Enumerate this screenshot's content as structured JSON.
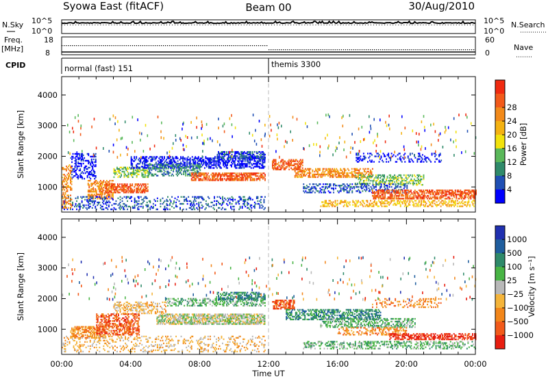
{
  "header": {
    "station": "Syowa East (fitACF)",
    "beam": "Beam 00",
    "date": "30/Aug/2010"
  },
  "chart_data": [
    {
      "id": "nsky-nsearch",
      "type": "line",
      "left_label": "N.Sky",
      "right_label": "N.Search",
      "left_ticks": [
        "10^5",
        "10^0"
      ],
      "right_ticks": [
        "10^5",
        "10^0"
      ],
      "log_scale": true
    },
    {
      "id": "freq-nave",
      "type": "line",
      "left_label": "Freq.",
      "left_unit": "[MHz]",
      "right_label": "Nave",
      "left_ticks": [
        "18",
        "8"
      ],
      "right_ticks": [
        "60",
        "0"
      ]
    },
    {
      "id": "cpid",
      "type": "table",
      "label": "CPID",
      "segments": [
        {
          "name": "normal (fast) 151",
          "start_hour": 0,
          "end_hour": 12
        },
        {
          "name": "themis 3300",
          "start_hour": 12,
          "end_hour": 24
        }
      ]
    },
    {
      "id": "power",
      "type": "heatmap",
      "ylabel": "Slant Range [km]",
      "yticks": [
        1000,
        2000,
        3000,
        4000
      ],
      "ylim": [
        180,
        4600
      ],
      "xlim": [
        0,
        24
      ],
      "colorbar": {
        "label": "Power [dB]",
        "ticks": [
          "4",
          "8",
          "12",
          "16",
          "20",
          "24",
          "28"
        ],
        "colors": [
          "#0000ff",
          "#1f4fb4",
          "#2f8a6a",
          "#5ab85a",
          "#f2e20c",
          "#f4b212",
          "#f28a1a",
          "#f25a1a",
          "#f02a10"
        ]
      },
      "bands": [
        {
          "t0": 0.5,
          "t1": 2.0,
          "r0": 1250,
          "r1": 2100,
          "c": 0,
          "p": 0.35
        },
        {
          "t0": 1.5,
          "t1": 3.0,
          "r0": 600,
          "r1": 1200,
          "c": 6,
          "p": 0.55
        },
        {
          "t0": 2.5,
          "t1": 5.0,
          "r0": 800,
          "r1": 1100,
          "c": 7,
          "p": 0.6
        },
        {
          "t0": 3.0,
          "t1": 5.0,
          "r0": 1300,
          "r1": 1650,
          "c": 3,
          "p": 0.5
        },
        {
          "t0": 4.0,
          "t1": 11.8,
          "r0": 1600,
          "r1": 2000,
          "c": 0,
          "p": 0.5
        },
        {
          "t0": 5.0,
          "t1": 8.0,
          "r0": 1350,
          "r1": 1750,
          "c": 2,
          "p": 0.45
        },
        {
          "t0": 7.5,
          "t1": 11.8,
          "r0": 1200,
          "r1": 1450,
          "c": 7,
          "p": 0.65
        },
        {
          "t0": 9.0,
          "t1": 11.8,
          "r0": 1900,
          "r1": 2150,
          "c": 1,
          "p": 0.55
        },
        {
          "t0": 0.0,
          "t1": 11.8,
          "r0": 250,
          "r1": 700,
          "c": 1,
          "p": 0.25
        },
        {
          "t0": 0.0,
          "t1": 0.6,
          "r0": 300,
          "r1": 1700,
          "c": 6,
          "p": 0.4
        },
        {
          "t0": 12.2,
          "t1": 14.0,
          "r0": 1550,
          "r1": 1900,
          "c": 7,
          "p": 0.6
        },
        {
          "t0": 13.5,
          "t1": 18.0,
          "r0": 1300,
          "r1": 1600,
          "c": 6,
          "p": 0.5
        },
        {
          "t0": 17.0,
          "t1": 21.0,
          "r0": 1050,
          "r1": 1400,
          "c": 3,
          "p": 0.4
        },
        {
          "t0": 14.0,
          "t1": 20.0,
          "r0": 800,
          "r1": 1100,
          "c": 1,
          "p": 0.35
        },
        {
          "t0": 18.0,
          "t1": 24.0,
          "r0": 600,
          "r1": 900,
          "c": 7,
          "p": 0.6
        },
        {
          "t0": 15.0,
          "t1": 24.0,
          "r0": 350,
          "r1": 550,
          "c": 5,
          "p": 0.4
        },
        {
          "t0": 17.0,
          "t1": 22.0,
          "r0": 1800,
          "r1": 2100,
          "c": 0,
          "p": 0.25
        }
      ]
    },
    {
      "id": "velocity",
      "type": "heatmap",
      "ylabel": "Slant Range [km]",
      "yticks": [
        1000,
        2000,
        3000,
        4000
      ],
      "ylim": [
        180,
        4600
      ],
      "xlim": [
        0,
        24
      ],
      "xticks": [
        "00:00",
        "04:00",
        "08:00",
        "12:00",
        "16:00",
        "20:00",
        "00:00"
      ],
      "xlabel": "Time UT",
      "colorbar": {
        "label": "Velocity [m s⁻¹]",
        "ticks": [
          "1000",
          "500",
          "100",
          "25",
          "−25",
          "−100",
          "−500",
          "−1000"
        ],
        "colors": [
          "#2030b0",
          "#1f5e9e",
          "#2f8a6a",
          "#48b444",
          "#b8b8b8",
          "#f4b43a",
          "#f2861a",
          "#f25a1a",
          "#e81e10"
        ]
      },
      "bands": [
        {
          "t0": 0.5,
          "t1": 2.5,
          "r0": 700,
          "r1": 1100,
          "c": 6,
          "p": 0.55
        },
        {
          "t0": 2.0,
          "t1": 4.5,
          "r0": 800,
          "r1": 1500,
          "c": 7,
          "p": 0.5
        },
        {
          "t0": 3.0,
          "t1": 6.0,
          "r0": 1500,
          "r1": 1900,
          "c": 5,
          "p": 0.4
        },
        {
          "t0": 5.5,
          "t1": 11.8,
          "r0": 1150,
          "r1": 1500,
          "c": 4,
          "p": 0.7
        },
        {
          "t0": 6.0,
          "t1": 11.8,
          "r0": 1750,
          "r1": 2000,
          "c": 3,
          "p": 0.45
        },
        {
          "t0": 9.0,
          "t1": 11.8,
          "r0": 1950,
          "r1": 2200,
          "c": 2,
          "p": 0.5
        },
        {
          "t0": 0.0,
          "t1": 11.8,
          "r0": 250,
          "r1": 750,
          "c": 5,
          "p": 0.2
        },
        {
          "t0": 12.2,
          "t1": 13.5,
          "r0": 1650,
          "r1": 1950,
          "c": 7,
          "p": 0.6
        },
        {
          "t0": 13.0,
          "t1": 18.5,
          "r0": 1300,
          "r1": 1650,
          "c": 2,
          "p": 0.5
        },
        {
          "t0": 15.0,
          "t1": 20.5,
          "r0": 1050,
          "r1": 1350,
          "c": 3,
          "p": 0.45
        },
        {
          "t0": 16.0,
          "t1": 20.0,
          "r0": 800,
          "r1": 1050,
          "c": 6,
          "p": 0.35
        },
        {
          "t0": 19.0,
          "t1": 24.0,
          "r0": 650,
          "r1": 850,
          "c": 8,
          "p": 0.55
        },
        {
          "t0": 14.0,
          "t1": 24.0,
          "r0": 350,
          "r1": 600,
          "c": 3,
          "p": 0.35
        },
        {
          "t0": 18.0,
          "t1": 22.0,
          "r0": 1700,
          "r1": 2000,
          "c": 6,
          "p": 0.25
        }
      ]
    }
  ]
}
